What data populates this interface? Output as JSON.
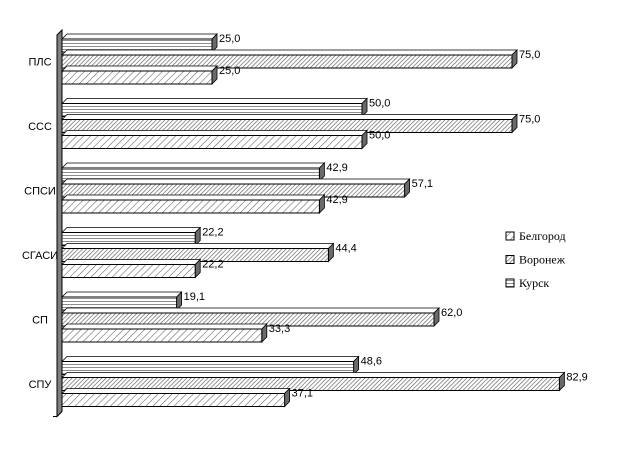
{
  "chart_data": {
    "type": "bar",
    "orientation": "horizontal",
    "style": "3d",
    "categories": [
      "ПЛС",
      "ССС",
      "СПСИ",
      "СГАСИ",
      "СП",
      "СПУ"
    ],
    "series": [
      {
        "name": "Курск",
        "pattern": "horizontal-lines",
        "values": [
          25.0,
          50.0,
          42.9,
          22.2,
          19.1,
          48.6
        ],
        "labels": [
          "25,0",
          "50,0",
          "42,9",
          "22,2",
          "19,1",
          "48,6"
        ]
      },
      {
        "name": "Воронеж",
        "pattern": "diagonal-dense",
        "values": [
          75.0,
          75.0,
          57.1,
          44.4,
          62.0,
          82.9
        ],
        "labels": [
          "75,0",
          "75,0",
          "57,1",
          "44,4",
          "62,0",
          "82,9"
        ]
      },
      {
        "name": "Белгород",
        "pattern": "diagonal-sparse",
        "values": [
          25.0,
          50.0,
          42.9,
          22.2,
          33.3,
          37.1
        ],
        "labels": [
          "25,0",
          "50,0",
          "42,9",
          "22,2",
          "33,3",
          "37,1"
        ]
      }
    ],
    "legend": {
      "position": "right",
      "entries": [
        {
          "name": "Белгород",
          "pattern": "diagonal-sparse"
        },
        {
          "name": "Воронеж",
          "pattern": "diagonal-dense"
        },
        {
          "name": "Курск",
          "pattern": "horizontal-lines"
        }
      ]
    },
    "xlim": [
      0,
      100
    ],
    "grid": false,
    "title": "",
    "xlabel": "",
    "ylabel": ""
  },
  "colors": {
    "bar_stroke": "#000000",
    "hatch": "#606060",
    "wall": "#808080",
    "background": "#ffffff"
  }
}
